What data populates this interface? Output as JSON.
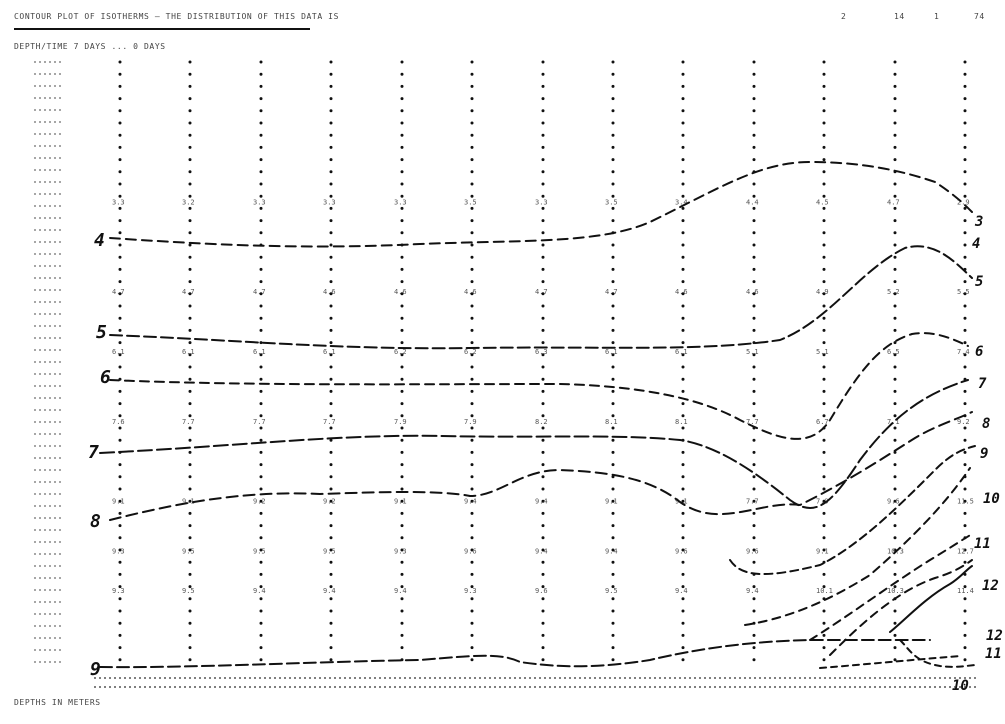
{
  "header": {
    "title": "CONTOUR PLOT OF ISOTHERMS — THE DISTRIBUTION OF THIS DATA IS",
    "right_labels": [
      "2",
      "14",
      "1",
      "74"
    ]
  },
  "axis_row": "DEPTH/TIME 7 DAYS ... 0 DAYS",
  "footer": "DEPTHS IN METERS",
  "chart_data": {
    "type": "line",
    "title": "",
    "xlabel": "",
    "ylabel": "",
    "columns": 13,
    "depth_range": [
      0,
      60
    ],
    "value_rows": [
      {
        "depth": 14,
        "values": [
          "3.3",
          "3.2",
          "3.3",
          "3.3",
          "3.3",
          "3.5",
          "3.3",
          "3.5",
          "3.4",
          "4.4",
          "4.5",
          "4.7",
          "2.9"
        ]
      },
      {
        "depth": 23,
        "values": [
          "4.7",
          "4.7",
          "4.7",
          "4.6",
          "4.6",
          "4.6",
          "4.7",
          "4.7",
          "4.6",
          "4.6",
          "4.9",
          "5.2",
          "5.5"
        ]
      },
      {
        "depth": 29,
        "values": [
          "6.1",
          "6.1",
          "6.1",
          "6.1",
          "6.2",
          "6.2",
          "6.3",
          "6.1",
          "6.1",
          "5.1",
          "5.1",
          "6.5",
          "7.4"
        ]
      },
      {
        "depth": 36,
        "values": [
          "7.6",
          "7.7",
          "7.7",
          "7.7",
          "7.9",
          "7.9",
          "8.2",
          "8.1",
          "8.1",
          "7.7",
          "6.7",
          "7.1",
          "9.2"
        ]
      },
      {
        "depth": 44,
        "values": [
          "9.1",
          "9.1",
          "9.2",
          "9.2",
          "9.1",
          "9.4",
          "9.4",
          "9.1",
          "9.1",
          "7.7",
          "7.9",
          "9.6",
          "11.5"
        ]
      },
      {
        "depth": 49,
        "values": [
          "9.3",
          "9.5",
          "9.5",
          "9.5",
          "9.3",
          "9.6",
          "9.4",
          "9.4",
          "9.6",
          "9.6",
          "9.1",
          "10.3",
          "12.7"
        ]
      },
      {
        "depth": 53,
        "values": [
          "9.3",
          "9.5",
          "9.4",
          "9.4",
          "9.4",
          "9.3",
          "9.6",
          "9.5",
          "9.4",
          "9.4",
          "10.1",
          "10.3",
          "11.4"
        ]
      }
    ],
    "left_labels": [
      "4",
      "5",
      "6",
      "7",
      "8",
      "9"
    ],
    "right_labels": [
      "3",
      "4",
      "5",
      "6",
      "7",
      "8",
      "9",
      "10",
      "11",
      "12",
      "12",
      "11",
      "10"
    ]
  }
}
